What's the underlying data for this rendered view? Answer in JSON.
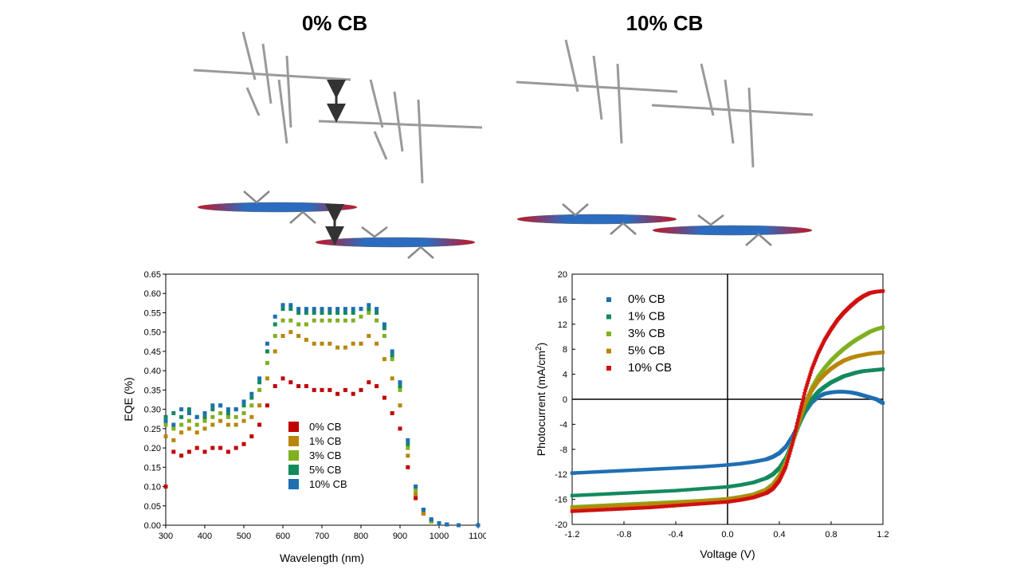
{
  "titles": {
    "left": "0% CB",
    "right": "10% CB"
  },
  "colors": {
    "0% CB": "#c00000",
    "1% CB": "#b8860b",
    "3% CB": "#7fb020",
    "5% CB": "#138a5e",
    "10% CB": "#1f6fb2",
    "0% CB_jv": "#1f6fb2",
    "1% CB_jv": "#138a5e",
    "3% CB_jv": "#7fb020",
    "5% CB_jv": "#b8860b",
    "10% CB_jv": "#d01010"
  },
  "chart_data": [
    {
      "type": "scatter",
      "xlabel": "Wavelength (nm)",
      "ylabel": "EQE (%)",
      "xlim": [
        300,
        1100
      ],
      "ylim": [
        0,
        0.65
      ],
      "xticks": [
        "300",
        "400",
        "500",
        "600",
        "700",
        "800",
        "900",
        "1000",
        "1100"
      ],
      "yticks": [
        "0.00",
        "0.05",
        "0.10",
        "0.15",
        "0.20",
        "0.25",
        "0.30",
        "0.35",
        "0.40",
        "0.45",
        "0.50",
        "0.55",
        "0.60",
        "0.65"
      ],
      "legend_position": "bottom-left",
      "series": [
        {
          "name": "0% CB",
          "x": [
            300,
            320,
            340,
            360,
            380,
            400,
            420,
            440,
            460,
            480,
            500,
            520,
            540,
            560,
            580,
            600,
            620,
            640,
            660,
            680,
            700,
            720,
            740,
            760,
            780,
            800,
            820,
            840,
            860,
            880,
            900,
            920,
            940,
            960,
            980,
            1000,
            1020,
            1050,
            1100
          ],
          "y": [
            0.1,
            0.19,
            0.18,
            0.19,
            0.2,
            0.19,
            0.2,
            0.2,
            0.19,
            0.2,
            0.21,
            0.23,
            0.26,
            0.31,
            0.36,
            0.38,
            0.37,
            0.36,
            0.36,
            0.35,
            0.35,
            0.35,
            0.34,
            0.35,
            0.34,
            0.35,
            0.37,
            0.36,
            0.33,
            0.29,
            0.25,
            0.15,
            0.07,
            0.03,
            0.01,
            0.005,
            0.002,
            0.0,
            0.0
          ]
        },
        {
          "name": "1% CB",
          "x": [
            300,
            320,
            340,
            360,
            380,
            400,
            420,
            440,
            460,
            480,
            500,
            520,
            540,
            560,
            580,
            600,
            620,
            640,
            660,
            680,
            700,
            720,
            740,
            760,
            780,
            800,
            820,
            840,
            860,
            880,
            900,
            920,
            940,
            960,
            980,
            1000,
            1020,
            1050,
            1100
          ],
          "y": [
            0.23,
            0.22,
            0.24,
            0.25,
            0.24,
            0.25,
            0.26,
            0.27,
            0.26,
            0.26,
            0.27,
            0.28,
            0.31,
            0.38,
            0.45,
            0.49,
            0.5,
            0.49,
            0.48,
            0.47,
            0.47,
            0.47,
            0.46,
            0.46,
            0.47,
            0.47,
            0.49,
            0.47,
            0.43,
            0.38,
            0.31,
            0.18,
            0.08,
            0.03,
            0.01,
            0.005,
            0.002,
            0.0,
            0.0
          ]
        },
        {
          "name": "3% CB",
          "x": [
            300,
            320,
            340,
            360,
            380,
            400,
            420,
            440,
            460,
            480,
            500,
            520,
            540,
            560,
            580,
            600,
            620,
            640,
            660,
            680,
            700,
            720,
            740,
            760,
            780,
            800,
            820,
            840,
            860,
            880,
            900,
            920,
            940,
            960,
            980,
            1000,
            1020,
            1050,
            1100
          ],
          "y": [
            0.26,
            0.25,
            0.26,
            0.27,
            0.26,
            0.27,
            0.28,
            0.29,
            0.28,
            0.28,
            0.29,
            0.31,
            0.35,
            0.42,
            0.49,
            0.53,
            0.53,
            0.52,
            0.52,
            0.53,
            0.53,
            0.53,
            0.53,
            0.53,
            0.53,
            0.54,
            0.55,
            0.53,
            0.49,
            0.43,
            0.35,
            0.2,
            0.09,
            0.04,
            0.01,
            0.005,
            0.002,
            0.0,
            0.0
          ]
        },
        {
          "name": "5% CB",
          "x": [
            300,
            320,
            340,
            360,
            380,
            400,
            420,
            440,
            460,
            480,
            500,
            520,
            540,
            560,
            580,
            600,
            620,
            640,
            660,
            680,
            700,
            720,
            740,
            760,
            780,
            800,
            820,
            840,
            860,
            880,
            900,
            920,
            940,
            960,
            980,
            1000,
            1020,
            1050,
            1100
          ],
          "y": [
            0.28,
            0.29,
            0.28,
            0.3,
            0.28,
            0.28,
            0.3,
            0.31,
            0.29,
            0.3,
            0.31,
            0.33,
            0.37,
            0.45,
            0.52,
            0.56,
            0.56,
            0.55,
            0.55,
            0.55,
            0.55,
            0.55,
            0.55,
            0.55,
            0.55,
            0.56,
            0.56,
            0.55,
            0.51,
            0.44,
            0.36,
            0.21,
            0.1,
            0.04,
            0.015,
            0.005,
            0.002,
            0.0,
            0.0
          ]
        },
        {
          "name": "10% CB",
          "x": [
            300,
            320,
            340,
            360,
            380,
            400,
            420,
            440,
            460,
            480,
            500,
            520,
            540,
            560,
            580,
            600,
            620,
            640,
            660,
            680,
            700,
            720,
            740,
            760,
            780,
            800,
            820,
            840,
            860,
            880,
            900,
            920,
            940,
            960,
            980,
            1000,
            1020,
            1050,
            1100
          ],
          "y": [
            0.27,
            0.26,
            0.3,
            0.29,
            0.28,
            0.29,
            0.31,
            0.31,
            0.3,
            0.3,
            0.32,
            0.34,
            0.38,
            0.47,
            0.54,
            0.57,
            0.57,
            0.56,
            0.56,
            0.56,
            0.56,
            0.56,
            0.56,
            0.56,
            0.56,
            0.56,
            0.57,
            0.56,
            0.52,
            0.45,
            0.37,
            0.22,
            0.1,
            0.04,
            0.015,
            0.005,
            0.002,
            0.0,
            0.0
          ]
        }
      ]
    },
    {
      "type": "scatter",
      "xlabel": "Voltage (V)",
      "ylabel": "Photocurrent (mA/cm",
      "ylabel_sup": "2",
      "ylabel_end": ")",
      "xlim": [
        -1.2,
        1.2
      ],
      "ylim": [
        -20,
        20
      ],
      "xticks": [
        "-1.2",
        "-0.8",
        "-0.4",
        "0.0",
        "0.4",
        "0.8",
        "1.2"
      ],
      "yticks": [
        "-20",
        "-16",
        "-12",
        "-8",
        "-4",
        "0",
        "4",
        "8",
        "12",
        "16",
        "20"
      ],
      "legend_position": "top-left",
      "series": [
        {
          "name": "0% CB",
          "x": [
            -1.2,
            -1.0,
            -0.8,
            -0.6,
            -0.4,
            -0.2,
            0.0,
            0.1,
            0.2,
            0.3,
            0.35,
            0.4,
            0.45,
            0.5,
            0.55,
            0.6,
            0.65,
            0.7,
            0.75,
            0.8,
            0.85,
            0.9,
            0.95,
            1.0,
            1.05,
            1.1,
            1.15,
            1.2
          ],
          "y": [
            -11.8,
            -11.6,
            -11.4,
            -11.2,
            -11.0,
            -10.8,
            -10.5,
            -10.3,
            -10.0,
            -9.6,
            -9.2,
            -8.6,
            -7.6,
            -6.0,
            -4.0,
            -2.0,
            -0.5,
            0.4,
            0.9,
            1.1,
            1.2,
            1.2,
            1.1,
            0.9,
            0.6,
            0.3,
            0.0,
            -0.6
          ]
        },
        {
          "name": "1% CB",
          "x": [
            -1.2,
            -1.0,
            -0.8,
            -0.6,
            -0.4,
            -0.2,
            0.0,
            0.1,
            0.2,
            0.3,
            0.35,
            0.4,
            0.45,
            0.5,
            0.55,
            0.6,
            0.65,
            0.7,
            0.75,
            0.8,
            0.85,
            0.9,
            0.95,
            1.0,
            1.05,
            1.1,
            1.15,
            1.2
          ],
          "y": [
            -15.4,
            -15.2,
            -15.0,
            -14.8,
            -14.6,
            -14.3,
            -14.0,
            -13.7,
            -13.3,
            -12.6,
            -12.0,
            -11.0,
            -9.4,
            -7.0,
            -4.2,
            -1.8,
            0.0,
            1.2,
            2.0,
            2.7,
            3.2,
            3.7,
            4.0,
            4.3,
            4.5,
            4.6,
            4.7,
            4.8
          ]
        },
        {
          "name": "3% CB",
          "x": [
            -1.2,
            -1.0,
            -0.8,
            -0.6,
            -0.4,
            -0.2,
            0.0,
            0.1,
            0.2,
            0.3,
            0.35,
            0.4,
            0.45,
            0.5,
            0.55,
            0.6,
            0.65,
            0.7,
            0.75,
            0.8,
            0.85,
            0.9,
            0.95,
            1.0,
            1.05,
            1.1,
            1.15,
            1.2
          ],
          "y": [
            -17.2,
            -17.0,
            -16.8,
            -16.6,
            -16.4,
            -16.2,
            -15.9,
            -15.6,
            -15.2,
            -14.4,
            -13.6,
            -12.2,
            -10.0,
            -7.0,
            -3.6,
            -0.6,
            1.8,
            3.6,
            5.0,
            6.2,
            7.2,
            8.1,
            8.9,
            9.6,
            10.2,
            10.8,
            11.2,
            11.5
          ]
        },
        {
          "name": "5% CB",
          "x": [
            -1.2,
            -1.0,
            -0.8,
            -0.6,
            -0.4,
            -0.2,
            0.0,
            0.1,
            0.2,
            0.3,
            0.35,
            0.4,
            0.45,
            0.5,
            0.55,
            0.6,
            0.65,
            0.7,
            0.75,
            0.8,
            0.85,
            0.9,
            0.95,
            1.0,
            1.05,
            1.1,
            1.15,
            1.2
          ],
          "y": [
            -17.4,
            -17.2,
            -17.0,
            -16.8,
            -16.6,
            -16.3,
            -16.0,
            -15.7,
            -15.3,
            -14.6,
            -13.8,
            -12.4,
            -10.2,
            -7.2,
            -3.8,
            -0.8,
            1.4,
            2.9,
            4.0,
            4.9,
            5.6,
            6.2,
            6.6,
            6.9,
            7.1,
            7.3,
            7.4,
            7.5
          ]
        },
        {
          "name": "10% CB",
          "x": [
            -1.2,
            -1.0,
            -0.8,
            -0.6,
            -0.4,
            -0.2,
            0.0,
            0.1,
            0.2,
            0.3,
            0.35,
            0.4,
            0.45,
            0.5,
            0.55,
            0.6,
            0.65,
            0.7,
            0.75,
            0.8,
            0.85,
            0.9,
            0.95,
            1.0,
            1.05,
            1.1,
            1.15,
            1.2
          ],
          "y": [
            -17.9,
            -17.7,
            -17.5,
            -17.3,
            -17.0,
            -16.7,
            -16.4,
            -16.1,
            -15.7,
            -15.0,
            -14.3,
            -13.0,
            -10.8,
            -7.2,
            -2.8,
            1.4,
            4.8,
            7.4,
            9.5,
            11.2,
            12.7,
            13.9,
            14.9,
            15.8,
            16.5,
            17.0,
            17.2,
            17.3
          ]
        }
      ]
    }
  ]
}
